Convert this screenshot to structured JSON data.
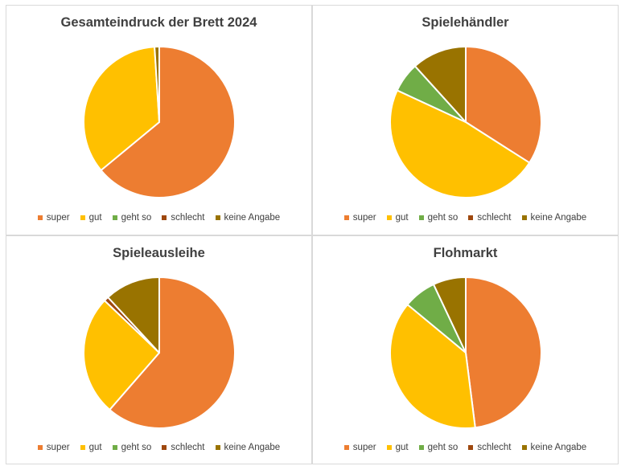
{
  "legend_labels": [
    "super",
    "gut",
    "geht so",
    "schlecht",
    "keine Angabe"
  ],
  "colors": [
    "#ED7D31",
    "#FFC000",
    "#70AD47",
    "#9E480E",
    "#997300"
  ],
  "chart_data": [
    {
      "type": "pie",
      "title": "Gesamteindruck der Brett 2024",
      "categories": [
        "super",
        "gut",
        "geht so",
        "schlecht",
        "keine Angabe"
      ],
      "values": [
        64,
        35,
        0,
        0,
        1
      ],
      "legend_position": "bottom"
    },
    {
      "type": "pie",
      "title": "Spielehändler",
      "categories": [
        "super",
        "gut",
        "geht so",
        "schlecht",
        "keine Angabe"
      ],
      "values": [
        32,
        45,
        6,
        0,
        11
      ],
      "legend_position": "bottom"
    },
    {
      "type": "pie",
      "title": "Spieleausleihe",
      "categories": [
        "super",
        "gut",
        "geht so",
        "schlecht",
        "keine Angabe"
      ],
      "values": [
        62,
        26,
        0,
        1,
        12
      ],
      "legend_position": "bottom"
    },
    {
      "type": "pie",
      "title": "Flohmarkt",
      "categories": [
        "super",
        "gut",
        "geht so",
        "schlecht",
        "keine Angabe"
      ],
      "values": [
        48,
        38,
        7,
        0,
        7
      ],
      "legend_position": "bottom"
    }
  ]
}
